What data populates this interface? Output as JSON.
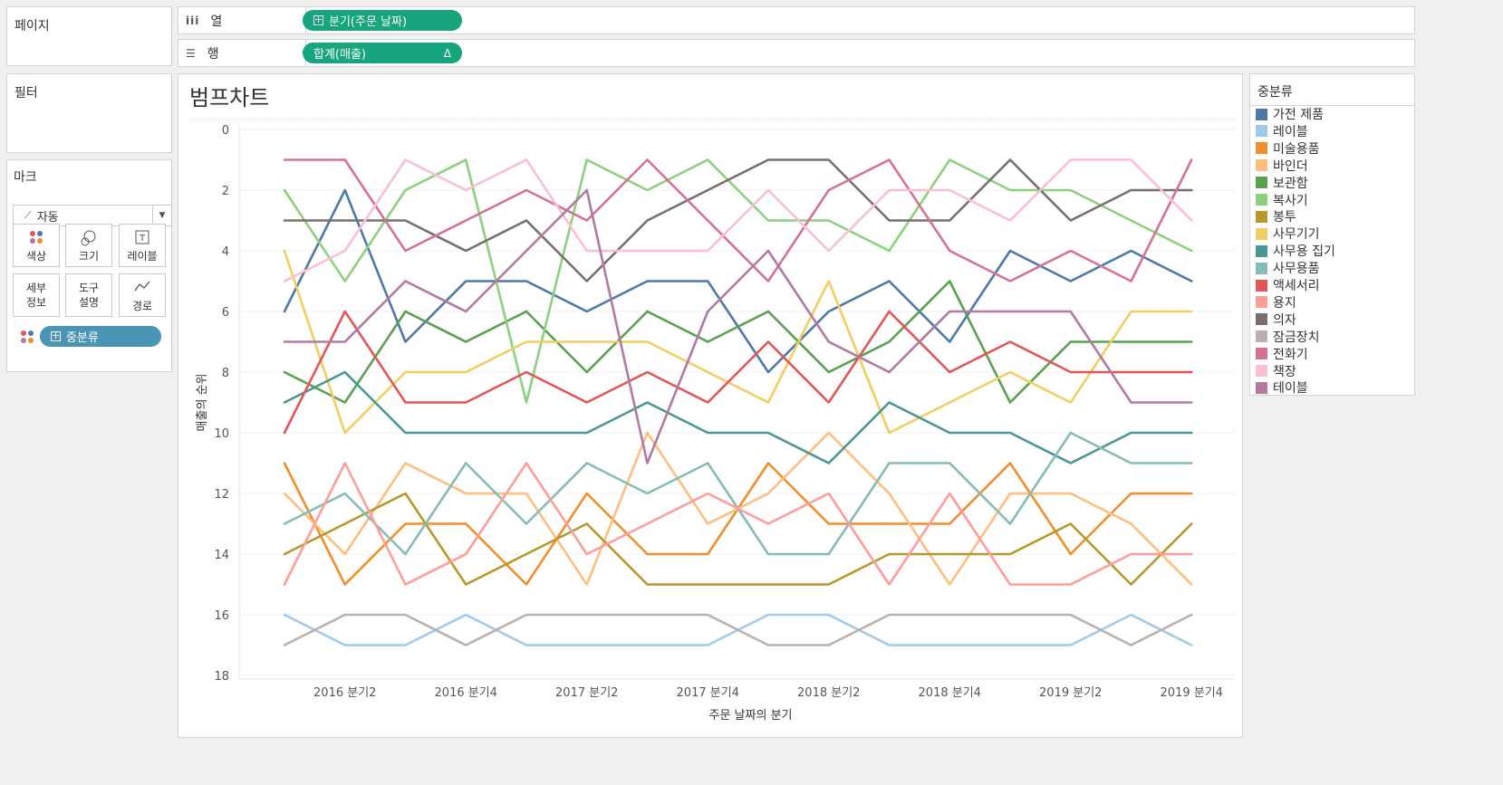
{
  "shelves": {
    "pages_label": "페이지",
    "columns_label": "열",
    "columns_pill": "분기(주문 날짜)",
    "rows_label": "행",
    "rows_pill": "합계(매출)",
    "rows_pill_delta": "Δ",
    "filters_label": "필터"
  },
  "marks": {
    "title": "마크",
    "type": "자동",
    "buttons": {
      "color": "색상",
      "size": "크기",
      "label": "레이블",
      "detail_1": "세부",
      "detail_2": "정보",
      "tooltip_1": "도구",
      "tooltip_2": "설명",
      "path": "경로"
    },
    "field_pill": "중분류"
  },
  "legend": {
    "title": "중분류"
  },
  "chart_data": {
    "type": "line",
    "title": "범프차트",
    "xlabel": "주문 날짜의 분기",
    "ylabel": "매출의 순위",
    "ylim": [
      0,
      18
    ],
    "y_reversed": true,
    "y_ticks": [
      "0",
      "2",
      "4",
      "6",
      "8",
      "10",
      "12",
      "14",
      "16",
      "18"
    ],
    "x": [
      "2016 분기1",
      "2016 분기2",
      "2016 분기3",
      "2016 분기4",
      "2017 분기1",
      "2017 분기2",
      "2017 분기3",
      "2017 분기4",
      "2018 분기1",
      "2018 분기2",
      "2018 분기3",
      "2018 분기4",
      "2019 분기1",
      "2019 분기2",
      "2019 분기3",
      "2019 분기4"
    ],
    "x_tick_labels": [
      "2016 분기2",
      "2016 분기4",
      "2017 분기2",
      "2017 분기4",
      "2018 분기2",
      "2018 분기4",
      "2019 분기2",
      "2019 분기4"
    ],
    "series": [
      {
        "name": "가전 제품",
        "color": "#4e79a7",
        "values": [
          6,
          2,
          7,
          5,
          5,
          6,
          5,
          5,
          8,
          6,
          5,
          7,
          4,
          5,
          4,
          5
        ]
      },
      {
        "name": "레이블",
        "color": "#a0cbe8",
        "values": [
          16,
          17,
          17,
          16,
          17,
          17,
          17,
          17,
          16,
          16,
          17,
          17,
          17,
          17,
          16,
          17
        ]
      },
      {
        "name": "미술용품",
        "color": "#f28e2b",
        "values": [
          11,
          15,
          13,
          13,
          15,
          12,
          14,
          14,
          11,
          13,
          13,
          13,
          11,
          14,
          12,
          12
        ]
      },
      {
        "name": "바인더",
        "color": "#ffbe7d",
        "values": [
          12,
          14,
          11,
          12,
          12,
          15,
          10,
          13,
          12,
          10,
          12,
          15,
          12,
          12,
          13,
          15
        ]
      },
      {
        "name": "보관함",
        "color": "#59a14f",
        "values": [
          8,
          9,
          6,
          7,
          6,
          8,
          6,
          7,
          6,
          8,
          7,
          5,
          9,
          7,
          7,
          7
        ]
      },
      {
        "name": "복사기",
        "color": "#8cd17d",
        "values": [
          2,
          5,
          2,
          1,
          9,
          1,
          2,
          1,
          3,
          3,
          4,
          1,
          2,
          2,
          3,
          4
        ]
      },
      {
        "name": "봉투",
        "color": "#b6992d",
        "values": [
          14,
          13,
          12,
          15,
          14,
          13,
          15,
          15,
          15,
          15,
          14,
          14,
          14,
          13,
          15,
          13
        ]
      },
      {
        "name": "사무기기",
        "color": "#f1ce63",
        "values": [
          4,
          10,
          8,
          8,
          7,
          7,
          7,
          8,
          9,
          5,
          10,
          9,
          8,
          9,
          6,
          6
        ]
      },
      {
        "name": "사무용 집기",
        "color": "#499894",
        "values": [
          9,
          8,
          10,
          10,
          10,
          10,
          9,
          10,
          10,
          11,
          9,
          10,
          10,
          11,
          10,
          10
        ]
      },
      {
        "name": "사무용품",
        "color": "#86bcb6",
        "values": [
          13,
          12,
          14,
          11,
          13,
          11,
          12,
          11,
          14,
          14,
          11,
          11,
          13,
          10,
          11,
          11
        ]
      },
      {
        "name": "액세서리",
        "color": "#e15759",
        "values": [
          10,
          6,
          9,
          9,
          8,
          9,
          8,
          9,
          7,
          9,
          6,
          8,
          7,
          8,
          8,
          8
        ]
      },
      {
        "name": "용지",
        "color": "#ff9d9a",
        "values": [
          15,
          11,
          15,
          14,
          11,
          14,
          13,
          12,
          13,
          12,
          15,
          12,
          15,
          15,
          14,
          14
        ]
      },
      {
        "name": "의자",
        "color": "#79706e",
        "values": [
          3,
          3,
          3,
          4,
          3,
          5,
          3,
          2,
          1,
          1,
          3,
          3,
          1,
          3,
          2,
          2
        ]
      },
      {
        "name": "잠금장치",
        "color": "#bab0ac",
        "values": [
          17,
          16,
          16,
          17,
          16,
          16,
          16,
          16,
          17,
          17,
          16,
          16,
          16,
          16,
          17,
          16
        ]
      },
      {
        "name": "전화기",
        "color": "#d37295",
        "values": [
          1,
          1,
          4,
          3,
          2,
          3,
          1,
          3,
          5,
          2,
          1,
          4,
          5,
          4,
          5,
          1
        ]
      },
      {
        "name": "책장",
        "color": "#fabfd2",
        "values": [
          5,
          4,
          1,
          2,
          1,
          4,
          4,
          4,
          2,
          4,
          2,
          2,
          3,
          1,
          1,
          3
        ]
      },
      {
        "name": "테이블",
        "color": "#b07aa1",
        "values": [
          7,
          7,
          5,
          6,
          4,
          2,
          11,
          6,
          4,
          7,
          8,
          6,
          6,
          6,
          9,
          9
        ]
      }
    ]
  }
}
